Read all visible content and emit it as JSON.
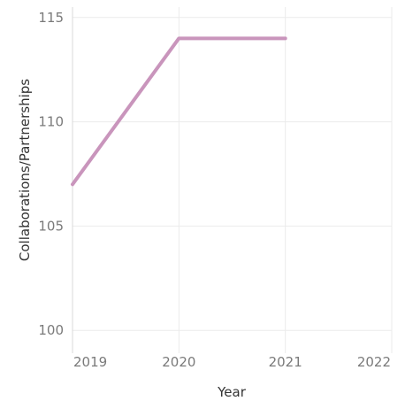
{
  "chart_data": {
    "type": "line",
    "title": "",
    "xlabel": "Year",
    "ylabel": "Collaborations/Partnerships",
    "x_ticks": [
      "2019",
      "2020",
      "2021",
      "2022"
    ],
    "y_ticks": [
      "100",
      "105",
      "110",
      "115"
    ],
    "xlim": [
      2019,
      2022
    ],
    "ylim": [
      99.5,
      115.5
    ],
    "grid": true,
    "series": [
      {
        "color": "#c995bc",
        "x": [
          2019,
          2020,
          2021
        ],
        "y": [
          107,
          114,
          114
        ]
      }
    ]
  }
}
